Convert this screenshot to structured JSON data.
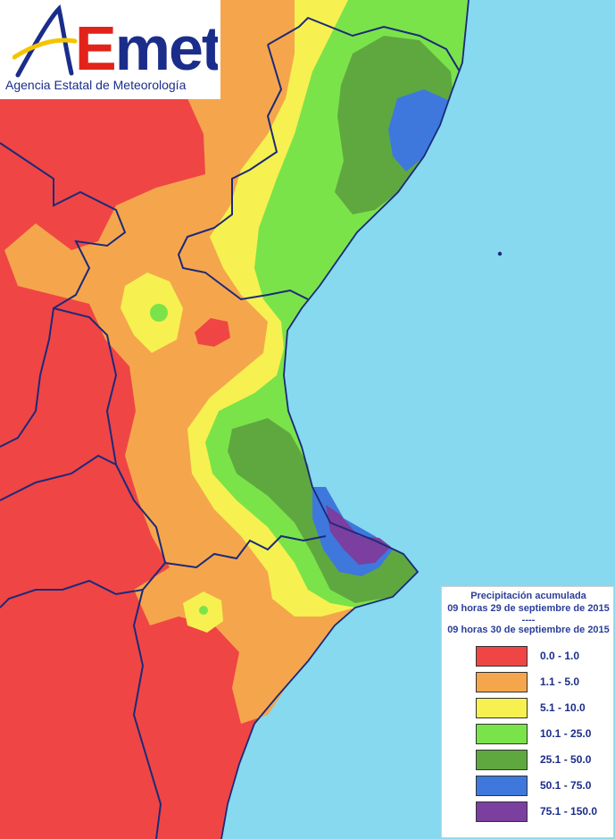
{
  "logo": {
    "wordmark": "AEmet",
    "agency": "Agencia Estatal de Meteorología"
  },
  "legend": {
    "title": "Precipitación acumulada",
    "period_start": "09 horas 29 de septiembre de 2015",
    "separator": "----",
    "period_end": "09 horas 30 de septiembre de 2015",
    "classes": [
      {
        "label": "0.0 - 1.0",
        "color": "#f04545"
      },
      {
        "label": "1.1 - 5.0",
        "color": "#f5a64c"
      },
      {
        "label": "5.1 - 10.0",
        "color": "#f6f150"
      },
      {
        "label": "10.1 - 25.0",
        "color": "#7be34a"
      },
      {
        "label": "25.1 - 50.0",
        "color": "#5fa83f"
      },
      {
        "label": "50.1 - 75.0",
        "color": "#3e78dd"
      },
      {
        "label": "75.1 - 150.0",
        "color": "#7a3f9f"
      }
    ]
  },
  "colors": {
    "sea": "#86d9ee",
    "border": "#1b2a7a"
  }
}
